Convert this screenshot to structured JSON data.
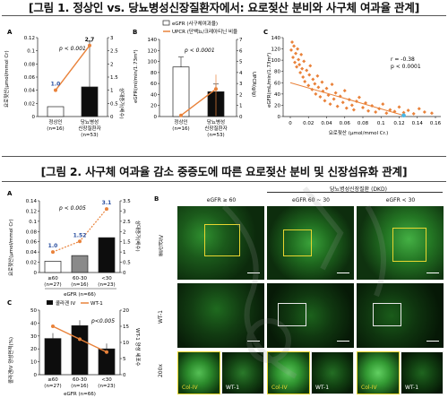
{
  "figure1": {
    "title": "[그림 1. 정상인 vs. 당뇨병성신장질환자에서: 요로젖산 분비와 사구체 여과율 관계]",
    "panelA": {
      "label": "A",
      "ylabel_left": "요로젖산(μmol/mmol Cr)",
      "ylabel_right": "상대증가(배수)",
      "pvalue": "p < 0.001",
      "point_labels": [
        "1.0",
        "2.7"
      ],
      "categories": [
        "정상인",
        "당뇨병성\n신장질환자"
      ],
      "ns": [
        "(n=16)",
        "(n=53)"
      ],
      "yticks": [
        "0",
        "0.02",
        "0.04",
        "0.06",
        "0.08",
        "0.1",
        "0.12"
      ],
      "y2ticks": [
        "0",
        "0.5",
        "1",
        "1.5",
        "2",
        "2.5",
        "3"
      ]
    },
    "panelB": {
      "label": "B",
      "legend": [
        "eGFR (사구체여과율)",
        "UPCR (단백뇨/크레아티닌 비율"
      ],
      "ylabel_left": "eGFR(ml/min/1.73m²)",
      "ylabel_right": "UPCR(g/g)",
      "pvalue": "p < 0.0001",
      "categories": [
        "정상인",
        "당뇨병성\n신장질환자"
      ],
      "ns": [
        "(n=16)",
        "(n=53)"
      ],
      "yticks": [
        "0",
        "20",
        "40",
        "60",
        "80",
        "100",
        "120",
        "140"
      ],
      "y2ticks": [
        "0",
        "1",
        "2",
        "3",
        "4",
        "5",
        "6",
        "7"
      ]
    },
    "panelC": {
      "label": "C",
      "ylabel": "eGFR(mL/min/1.73m²)",
      "xlabel": "요로젖산 (μmol/mmol Cr.)",
      "stats": [
        "r = -0.38",
        "p < 0.0001"
      ],
      "yticks": [
        "0",
        "20",
        "40",
        "60",
        "80",
        "100",
        "120",
        "140"
      ],
      "xticks": [
        "0",
        "0.02",
        "0.04",
        "0.06",
        "0.08",
        "0.1",
        "0.12",
        "0.14",
        "0.16"
      ]
    }
  },
  "figure2": {
    "title": "[그림 2. 사구체 여과율 감소 중증도에 따른 요로젖산 분비 및 신장섬유화 관계]",
    "panelA": {
      "label": "A",
      "ylabel_left": "요로젖산(μmol/mmol Cr)",
      "ylabel_right": "상대증가(배수)",
      "pvalue": "p < 0.005",
      "point_labels": [
        "1.0",
        "1.52",
        "3.1"
      ],
      "categories": [
        "≥60",
        "60-30",
        "<30"
      ],
      "ns": [
        "(n=27)",
        "(n=16)",
        "(n=23)"
      ],
      "group": "eGFR (n=66)",
      "yticks": [
        "0",
        "0.02",
        "0.04",
        "0.06",
        "0.08",
        "0.1",
        "0.12",
        "0.14"
      ],
      "y2ticks": [
        "0",
        "0.5",
        "1",
        "1.5",
        "2",
        "2.5",
        "3",
        "3.5"
      ]
    },
    "panelC": {
      "label": "C",
      "legend": [
        "콜라겐 IV",
        "WT-1"
      ],
      "ylabel_left": "콜라겐IV 양성면적(%)",
      "ylabel_right": "WT-1 양성 세포수",
      "pvalue": "p<0.005",
      "categories": [
        "≥60",
        "60-30",
        "<30"
      ],
      "ns": [
        "(n=27)",
        "(n=16)",
        "(n=23)"
      ],
      "group": "eGFR (n=66)",
      "yticks": [
        "0",
        "10",
        "20",
        "30",
        "40",
        "50"
      ],
      "y2ticks": [
        "0",
        "5",
        "10",
        "15",
        "20"
      ]
    },
    "panelB": {
      "label": "B",
      "group_header": "당뇨병성신장질환 (DKD)",
      "columns": [
        "eGFR ≥ 60",
        "eGFR 60 ~ 30",
        "eGFR < 30"
      ],
      "rows": [
        "콜라겐IV",
        "WT-1",
        "200x"
      ],
      "inset_labels": [
        "Col-IV",
        "WT-1"
      ]
    }
  },
  "chart_data": [
    {
      "type": "bar",
      "panel": "1A",
      "categories": [
        "정상인 (n=16)",
        "당뇨병성신장질환자 (n=53)"
      ],
      "series": [
        {
          "values": [
            0.015,
            0.045
          ],
          "axis": "left"
        },
        {
          "values": [
            1.0,
            2.7
          ],
          "axis": "right"
        }
      ],
      "ylabel": "요로젖산(μmol/mmol Cr)",
      "ylim": [
        0,
        0.12
      ],
      "y2lim": [
        0,
        3
      ]
    },
    {
      "type": "bar",
      "panel": "1B",
      "categories": [
        "정상인 (n=16)",
        "당뇨병성신장질환자 (n=53)"
      ],
      "series": [
        {
          "name": "eGFR (사구체여과율)",
          "values": [
            90,
            45
          ],
          "axis": "left"
        },
        {
          "name": "UPCR (단백뇨/크레아티닌 비율",
          "values": [
            0.1,
            2.5
          ],
          "axis": "right"
        }
      ],
      "ylabel": "eGFR(ml/min/1.73m²)",
      "ylim": [
        0,
        140
      ],
      "y2lim": [
        0,
        7
      ]
    },
    {
      "type": "scatter",
      "panel": "1C",
      "points": [
        [
          0.001,
          118
        ],
        [
          0.002,
          132
        ],
        [
          0.003,
          105
        ],
        [
          0.004,
          125
        ],
        [
          0.005,
          96
        ],
        [
          0.006,
          112
        ],
        [
          0.007,
          88
        ],
        [
          0.008,
          120
        ],
        [
          0.009,
          101
        ],
        [
          0.01,
          92
        ],
        [
          0.011,
          78
        ],
        [
          0.012,
          110
        ],
        [
          0.013,
          85
        ],
        [
          0.014,
          70
        ],
        [
          0.015,
          98
        ],
        [
          0.016,
          62
        ],
        [
          0.018,
          82
        ],
        [
          0.02,
          55
        ],
        [
          0.021,
          74
        ],
        [
          0.022,
          90
        ],
        [
          0.024,
          48
        ],
        [
          0.025,
          66
        ],
        [
          0.027,
          58
        ],
        [
          0.028,
          40
        ],
        [
          0.03,
          72
        ],
        [
          0.031,
          52
        ],
        [
          0.033,
          35
        ],
        [
          0.035,
          61
        ],
        [
          0.036,
          45
        ],
        [
          0.038,
          28
        ],
        [
          0.04,
          50
        ],
        [
          0.042,
          38
        ],
        [
          0.044,
          22
        ],
        [
          0.046,
          57
        ],
        [
          0.048,
          31
        ],
        [
          0.05,
          42
        ],
        [
          0.052,
          18
        ],
        [
          0.055,
          36
        ],
        [
          0.058,
          25
        ],
        [
          0.06,
          46
        ],
        [
          0.062,
          15
        ],
        [
          0.065,
          30
        ],
        [
          0.068,
          20
        ],
        [
          0.07,
          12
        ],
        [
          0.073,
          27
        ],
        [
          0.076,
          34
        ],
        [
          0.08,
          16
        ],
        [
          0.083,
          24
        ],
        [
          0.086,
          10
        ],
        [
          0.09,
          19
        ],
        [
          0.094,
          8
        ],
        [
          0.098,
          14
        ],
        [
          0.102,
          22
        ],
        [
          0.106,
          6
        ],
        [
          0.11,
          12
        ],
        [
          0.115,
          9
        ],
        [
          0.12,
          17
        ],
        [
          0.125,
          7
        ],
        [
          0.13,
          11
        ],
        [
          0.136,
          5
        ],
        [
          0.142,
          14
        ],
        [
          0.148,
          8
        ],
        [
          0.156,
          6
        ]
      ],
      "trend": [
        [
          0,
          60
        ],
        [
          0.125,
          2
        ]
      ],
      "xlabel": "요로젖산 (μmol/mmol Cr.)",
      "ylabel": "eGFR(mL/min/1.73m²)",
      "xlim": [
        0,
        0.16
      ],
      "ylim": [
        0,
        140
      ]
    },
    {
      "type": "bar",
      "panel": "2A",
      "categories": [
        "≥60 (n=27)",
        "60-30 (n=16)",
        "<30 (n=23)"
      ],
      "series": [
        {
          "values": [
            0.022,
            0.033,
            0.068
          ],
          "axis": "left"
        },
        {
          "values": [
            1.0,
            1.52,
            3.1
          ],
          "axis": "right"
        }
      ],
      "ylim": [
        0,
        0.14
      ],
      "y2lim": [
        0,
        3.5
      ]
    },
    {
      "type": "bar",
      "panel": "2C",
      "categories": [
        "≥60 (n=27)",
        "60-30 (n=16)",
        "<30 (n=23)"
      ],
      "series": [
        {
          "name": "콜라겐 IV",
          "values": [
            28,
            38,
            20
          ],
          "axis": "left"
        },
        {
          "name": "WT-1",
          "values": [
            15,
            11,
            7
          ],
          "axis": "right"
        }
      ],
      "ylim": [
        0,
        50
      ],
      "y2lim": [
        0,
        20
      ]
    }
  ],
  "colors": {
    "orange": "#e9823a",
    "bar_black": "#0d0d0d",
    "green_fluor": "#39b54a",
    "yellow_box": "#e8d530",
    "watermark": "#c9c9c9"
  }
}
